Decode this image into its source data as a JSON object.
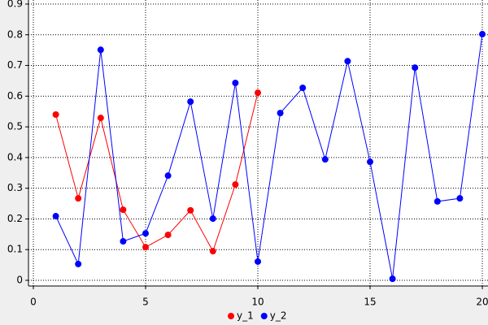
{
  "chart_data": {
    "type": "line",
    "x": [
      1,
      2,
      3,
      4,
      5,
      6,
      7,
      8,
      9,
      10,
      11,
      12,
      13,
      14,
      15,
      16,
      17,
      18,
      19,
      20
    ],
    "series": [
      {
        "name": "y_1",
        "color": "#ff0000",
        "values": [
          0.54,
          0.267,
          0.529,
          0.23,
          0.108,
          0.148,
          0.228,
          0.095,
          0.312,
          0.611,
          null,
          null,
          null,
          null,
          null,
          null,
          null,
          null,
          null,
          null
        ]
      },
      {
        "name": "y_2",
        "color": "#0000ff",
        "values": [
          0.209,
          0.053,
          0.751,
          0.127,
          0.153,
          0.341,
          0.582,
          0.201,
          0.643,
          0.061,
          0.545,
          0.627,
          0.394,
          0.714,
          0.386,
          0.005,
          0.693,
          0.257,
          0.267,
          0.802
        ]
      }
    ],
    "xlim": [
      0,
      20
    ],
    "xticks": [
      0,
      5,
      10,
      15,
      20
    ],
    "ylim": [
      0,
      0.9
    ],
    "yticks": [
      0,
      0.1,
      0.2,
      0.3,
      0.4,
      0.5,
      0.6,
      0.7,
      0.8,
      0.9
    ],
    "grid": true,
    "legend": "bottom"
  }
}
